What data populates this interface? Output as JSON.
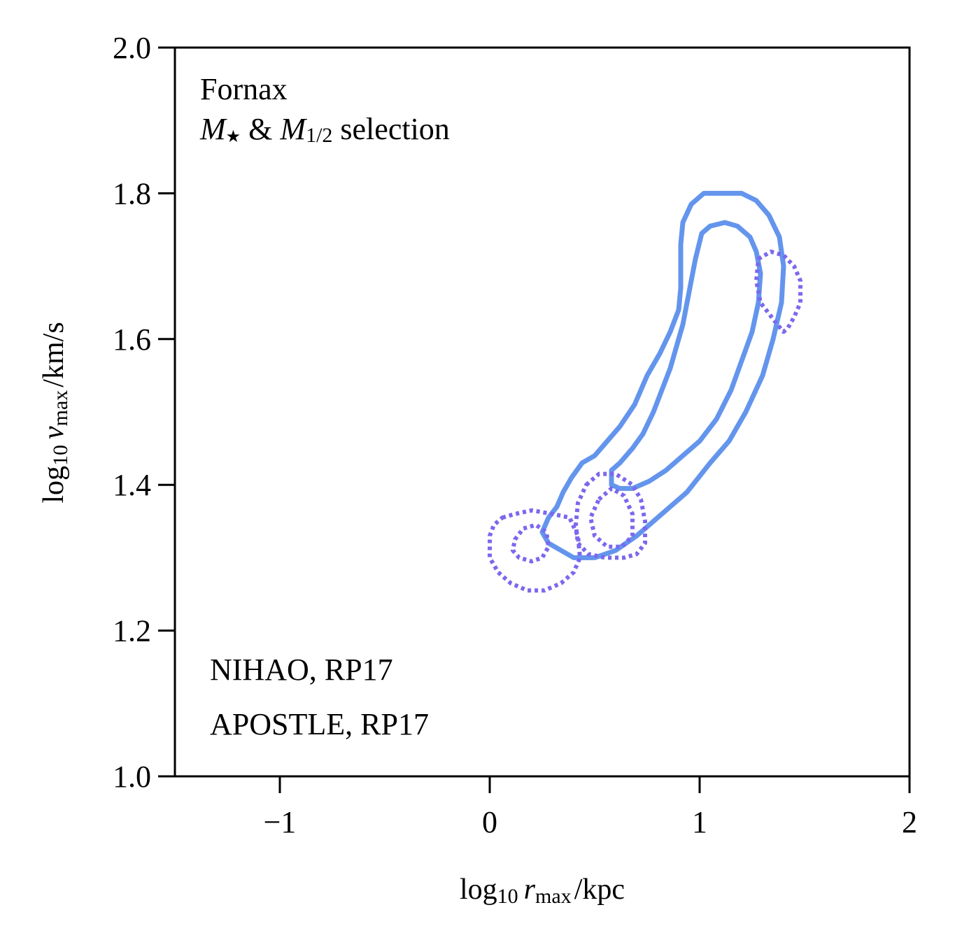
{
  "chart_data": {
    "type": "contour",
    "xlabel": {
      "prefix": "log",
      "sub": "10",
      "var": "r",
      "var_sub": "max",
      "unit": "/kpc"
    },
    "ylabel": {
      "prefix": "log",
      "sub": "10",
      "var": "v",
      "var_sub": "max",
      "unit": "/km/s"
    },
    "xlim": [
      -1.5,
      2.0
    ],
    "ylim": [
      1.0,
      2.0
    ],
    "xticks": [
      -1,
      0,
      1,
      2
    ],
    "xtick_labels": [
      "−1",
      "0",
      "1",
      "2"
    ],
    "yticks": [
      1.0,
      1.2,
      1.4,
      1.6,
      1.8,
      2.0
    ],
    "ytick_labels": [
      "1.0",
      "1.2",
      "1.4",
      "1.6",
      "1.8",
      "2.0"
    ],
    "grid": false,
    "annotation": {
      "line1": "Fornax",
      "line2_m": "M",
      "line2_star": "★",
      "line2_amp": " & ",
      "line2_m2": "M",
      "line2_m2_sub": "1/2",
      "line2_rest": " selection"
    },
    "legend_placement": "bottom-left",
    "series": [
      {
        "name": "NIHAO, RP17",
        "color": "#6495ED",
        "style": "solid",
        "contours": [
          [
            [
              1.12,
              1.8
            ],
            [
              1.2,
              1.8
            ],
            [
              1.27,
              1.79
            ],
            [
              1.33,
              1.77
            ],
            [
              1.38,
              1.74
            ],
            [
              1.4,
              1.7
            ],
            [
              1.39,
              1.65
            ],
            [
              1.35,
              1.6
            ],
            [
              1.3,
              1.55
            ],
            [
              1.22,
              1.5
            ],
            [
              1.14,
              1.46
            ],
            [
              1.05,
              1.43
            ],
            [
              0.94,
              1.39
            ],
            [
              0.82,
              1.36
            ],
            [
              0.7,
              1.33
            ],
            [
              0.6,
              1.31
            ],
            [
              0.5,
              1.3
            ],
            [
              0.4,
              1.3
            ],
            [
              0.34,
              1.31
            ],
            [
              0.28,
              1.32
            ],
            [
              0.25,
              1.335
            ],
            [
              0.28,
              1.355
            ],
            [
              0.32,
              1.37
            ],
            [
              0.35,
              1.39
            ],
            [
              0.39,
              1.41
            ],
            [
              0.44,
              1.43
            ],
            [
              0.5,
              1.44
            ],
            [
              0.56,
              1.46
            ],
            [
              0.62,
              1.48
            ],
            [
              0.69,
              1.51
            ],
            [
              0.75,
              1.55
            ],
            [
              0.81,
              1.58
            ],
            [
              0.86,
              1.61
            ],
            [
              0.9,
              1.64
            ],
            [
              0.91,
              1.67
            ],
            [
              0.91,
              1.7
            ],
            [
              0.91,
              1.73
            ],
            [
              0.92,
              1.76
            ],
            [
              0.96,
              1.785
            ],
            [
              1.02,
              1.8
            ],
            [
              1.12,
              1.8
            ]
          ],
          [
            [
              1.12,
              1.76
            ],
            [
              1.18,
              1.755
            ],
            [
              1.24,
              1.74
            ],
            [
              1.27,
              1.72
            ],
            [
              1.29,
              1.69
            ],
            [
              1.28,
              1.65
            ],
            [
              1.25,
              1.61
            ],
            [
              1.2,
              1.57
            ],
            [
              1.15,
              1.53
            ],
            [
              1.08,
              1.49
            ],
            [
              1.0,
              1.46
            ],
            [
              0.92,
              1.44
            ],
            [
              0.84,
              1.42
            ],
            [
              0.76,
              1.405
            ],
            [
              0.68,
              1.395
            ],
            [
              0.62,
              1.395
            ],
            [
              0.58,
              1.4
            ],
            [
              0.58,
              1.42
            ],
            [
              0.62,
              1.43
            ],
            [
              0.68,
              1.45
            ],
            [
              0.73,
              1.47
            ],
            [
              0.78,
              1.5
            ],
            [
              0.82,
              1.53
            ],
            [
              0.86,
              1.56
            ],
            [
              0.89,
              1.59
            ],
            [
              0.92,
              1.62
            ],
            [
              0.94,
              1.65
            ],
            [
              0.96,
              1.68
            ],
            [
              0.98,
              1.71
            ],
            [
              1.01,
              1.745
            ],
            [
              1.05,
              1.755
            ],
            [
              1.12,
              1.76
            ]
          ]
        ]
      },
      {
        "name": "APOSTLE, RP17",
        "color": "#7B68EE",
        "style": "dotted",
        "contours": [
          [
            [
              0.06,
              1.355
            ],
            [
              0.12,
              1.36
            ],
            [
              0.2,
              1.365
            ],
            [
              0.3,
              1.36
            ],
            [
              0.38,
              1.355
            ],
            [
              0.42,
              1.33
            ],
            [
              0.43,
              1.3
            ],
            [
              0.4,
              1.28
            ],
            [
              0.34,
              1.265
            ],
            [
              0.26,
              1.255
            ],
            [
              0.18,
              1.255
            ],
            [
              0.1,
              1.265
            ],
            [
              0.04,
              1.28
            ],
            [
              0.0,
              1.3
            ],
            [
              0.0,
              1.33
            ],
            [
              0.02,
              1.345
            ],
            [
              0.06,
              1.355
            ]
          ],
          [
            [
              0.12,
              1.325
            ],
            [
              0.16,
              1.34
            ],
            [
              0.22,
              1.345
            ],
            [
              0.27,
              1.335
            ],
            [
              0.28,
              1.315
            ],
            [
              0.25,
              1.3
            ],
            [
              0.2,
              1.295
            ],
            [
              0.14,
              1.3
            ],
            [
              0.11,
              1.31
            ],
            [
              0.12,
              1.325
            ]
          ],
          [
            [
              0.46,
              1.4
            ],
            [
              0.52,
              1.415
            ],
            [
              0.6,
              1.415
            ],
            [
              0.68,
              1.4
            ],
            [
              0.72,
              1.38
            ],
            [
              0.74,
              1.35
            ],
            [
              0.74,
              1.32
            ],
            [
              0.7,
              1.305
            ],
            [
              0.64,
              1.3
            ],
            [
              0.55,
              1.3
            ],
            [
              0.47,
              1.305
            ],
            [
              0.42,
              1.32
            ],
            [
              0.41,
              1.345
            ],
            [
              0.42,
              1.375
            ],
            [
              0.46,
              1.4
            ]
          ],
          [
            [
              0.52,
              1.38
            ],
            [
              0.58,
              1.395
            ],
            [
              0.64,
              1.385
            ],
            [
              0.68,
              1.36
            ],
            [
              0.68,
              1.33
            ],
            [
              0.63,
              1.315
            ],
            [
              0.56,
              1.315
            ],
            [
              0.5,
              1.33
            ],
            [
              0.48,
              1.355
            ],
            [
              0.52,
              1.38
            ]
          ],
          [
            [
              1.28,
              1.71
            ],
            [
              1.34,
              1.72
            ],
            [
              1.4,
              1.715
            ],
            [
              1.45,
              1.7
            ],
            [
              1.48,
              1.68
            ],
            [
              1.48,
              1.65
            ],
            [
              1.45,
              1.63
            ],
            [
              1.42,
              1.615
            ],
            [
              1.4,
              1.61
            ],
            [
              1.37,
              1.62
            ],
            [
              1.33,
              1.635
            ],
            [
              1.29,
              1.65
            ],
            [
              1.27,
              1.68
            ],
            [
              1.28,
              1.71
            ]
          ]
        ]
      }
    ]
  }
}
